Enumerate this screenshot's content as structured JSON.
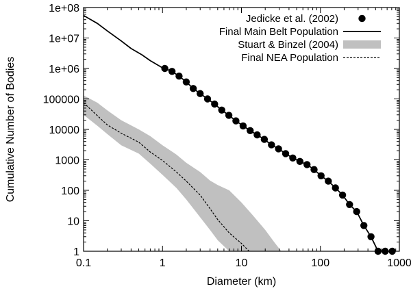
{
  "chart_data": {
    "type": "line",
    "title": "",
    "xlabel": "Diameter (km)",
    "ylabel": "Cumulative Number of Bodies",
    "xscale": "log",
    "yscale": "log",
    "xlim": [
      0.1,
      1000
    ],
    "ylim": [
      1,
      100000000
    ],
    "x_ticks": [
      0.1,
      1,
      10,
      100,
      1000
    ],
    "x_tick_labels": [
      "0.1",
      "1",
      "10",
      "100",
      "1000"
    ],
    "y_ticks": [
      1,
      10,
      100,
      1000,
      10000,
      100000,
      1000000,
      10000000,
      100000000
    ],
    "y_tick_labels": [
      "1",
      "10",
      "100",
      "1000",
      "10000",
      "100000",
      "1e+06",
      "1e+07",
      "1e+08"
    ],
    "legend_position": "top-right",
    "series": [
      {
        "name": "Jedicke et al. (2002)",
        "style": "points",
        "color": "#000000",
        "x": [
          1.07,
          1.32,
          1.62,
          2.0,
          2.45,
          3.0,
          3.72,
          4.57,
          5.62,
          6.92,
          8.51,
          10.5,
          12.9,
          15.8,
          19.5,
          24.0,
          29.5,
          36.3,
          44.7,
          55.0,
          67.6,
          83.2,
          102,
          126,
          155,
          191,
          234,
          288,
          355,
          437,
          537,
          661,
          813
        ],
        "y": [
          1000000,
          800000,
          560000,
          360000,
          220000,
          150000,
          100000,
          68000,
          43000,
          29000,
          19000,
          13000,
          9100,
          6600,
          4700,
          3100,
          2300,
          1600,
          1150,
          890,
          700,
          480,
          300,
          200,
          120,
          70,
          34,
          20,
          7,
          3,
          1,
          1,
          1
        ]
      },
      {
        "name": "Final Main Belt Population",
        "style": "line",
        "color": "#000000",
        "x": [
          0.1,
          0.15,
          0.2,
          0.3,
          0.4,
          0.55,
          0.7,
          1.0,
          1.07,
          1.32,
          1.62,
          2.0,
          2.45,
          3.0,
          3.72,
          4.57,
          5.62,
          6.92,
          8.51,
          10.5,
          12.9,
          15.8,
          19.5,
          24.0,
          29.5,
          36.3,
          44.7,
          55.0,
          67.6,
          83.2,
          102,
          126,
          155,
          191,
          234,
          288,
          355,
          437,
          537
        ],
        "y": [
          55000000,
          30000000,
          17000000,
          8000000,
          4500000,
          2800000,
          1800000,
          1050000,
          1000000,
          800000,
          560000,
          360000,
          220000,
          150000,
          100000,
          68000,
          43000,
          29000,
          19000,
          13000,
          9100,
          6600,
          4700,
          3100,
          2300,
          1600,
          1150,
          890,
          700,
          480,
          300,
          200,
          120,
          70,
          34,
          20,
          7,
          3,
          1
        ]
      },
      {
        "name": "Stuart & Binzel (2004)",
        "style": "band",
        "color": "#c0c0c0",
        "x": [
          0.1,
          0.15,
          0.2,
          0.3,
          0.5,
          0.7,
          1.0,
          1.5,
          2.0,
          3.0,
          4.0,
          5.0,
          7.0,
          10.0,
          14.0,
          20.0,
          26.0,
          32.0
        ],
        "y_low": [
          30000,
          13000,
          7000,
          3000,
          1600,
          750,
          320,
          120,
          50,
          13,
          5,
          2.3,
          1,
          1,
          1,
          1,
          1,
          1
        ],
        "y_high": [
          130000,
          75000,
          42000,
          20000,
          10000,
          6000,
          3000,
          1500,
          800,
          400,
          210,
          150,
          100,
          40,
          15,
          5,
          2,
          1
        ]
      },
      {
        "name": "Final NEA Population",
        "style": "dashed",
        "color": "#000000",
        "x": [
          0.1,
          0.15,
          0.2,
          0.3,
          0.5,
          0.7,
          1.0,
          1.5,
          2.0,
          3.0,
          4.0,
          5.0,
          7.0,
          10.0,
          12.5
        ],
        "y": [
          75000,
          28000,
          14000,
          7500,
          3800,
          1800,
          950,
          400,
          200,
          70,
          25,
          11,
          4,
          1.8,
          1
        ]
      }
    ]
  }
}
